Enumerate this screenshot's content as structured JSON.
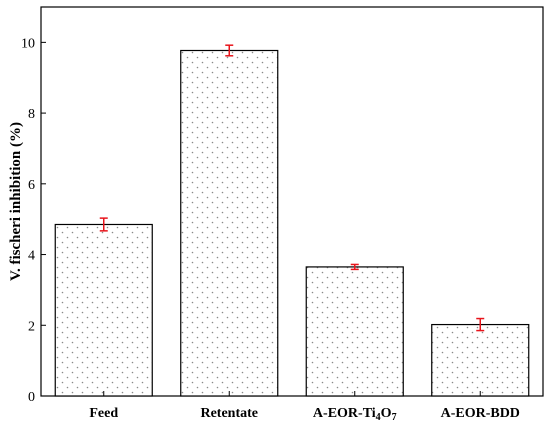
{
  "chart_data": {
    "type": "bar",
    "title": "",
    "xlabel": "",
    "ylabel": "V. fischeri inhibition (%)",
    "ylim": [
      0,
      11
    ],
    "yticks": [
      0,
      2,
      4,
      6,
      8,
      10
    ],
    "grid": false,
    "categories": [
      {
        "main": "Feed",
        "sub1": "",
        "mid": "",
        "sub2": ""
      },
      {
        "main": "Retentate",
        "sub1": "",
        "mid": "",
        "sub2": ""
      },
      {
        "main": "A-EOR-Ti",
        "sub1": "4",
        "mid": "O",
        "sub2": "7"
      },
      {
        "main": "A-EOR-BDD",
        "sub1": "",
        "mid": "",
        "sub2": ""
      }
    ],
    "values": [
      4.85,
      9.77,
      3.65,
      2.02
    ],
    "errors": [
      0.18,
      0.15,
      0.07,
      0.17
    ],
    "bar_fill": "dotted",
    "error_bar_color": "#e8141b"
  }
}
